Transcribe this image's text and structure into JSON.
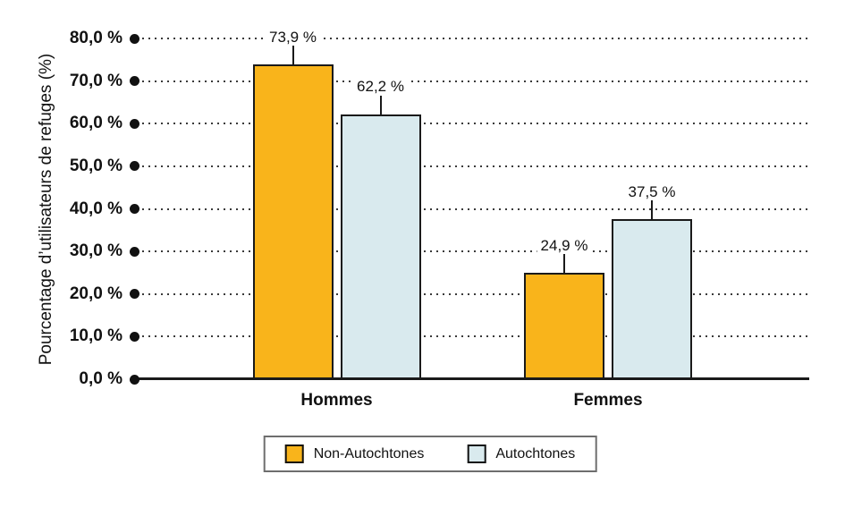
{
  "chart_data": {
    "type": "bar",
    "title": "",
    "ylabel": "Pourcentage d’utilisateurs de refuges (%)",
    "xlabel": "",
    "ylim": [
      0,
      80
    ],
    "ytick_step": 10,
    "grid": "dotted-horizontal",
    "legend_position": "bottom",
    "yticks": [
      {
        "value": 0,
        "label": "0,0 %"
      },
      {
        "value": 10,
        "label": "10,0 %"
      },
      {
        "value": 20,
        "label": "20,0 %"
      },
      {
        "value": 30,
        "label": "30,0 %"
      },
      {
        "value": 40,
        "label": "40,0 %"
      },
      {
        "value": 50,
        "label": "50,0 %"
      },
      {
        "value": 60,
        "label": "60,0 %"
      },
      {
        "value": 70,
        "label": "70,0 %"
      },
      {
        "value": 80,
        "label": "80,0 %"
      }
    ],
    "categories": [
      "Hommes",
      "Femmes"
    ],
    "series": [
      {
        "name": "Non-Autochtones",
        "color": "#F9B41B",
        "values": [
          73.9,
          24.9
        ],
        "labels": [
          "73,9 %",
          "24,9 %"
        ]
      },
      {
        "name": "Autochtones",
        "color": "#D9EAEE",
        "values": [
          62.2,
          37.5
        ],
        "labels": [
          "62,2 %",
          "37,5 %"
        ]
      }
    ],
    "colors": {
      "bar_outline": "#1A1A1A",
      "axis": "#1A1A1A",
      "grid_dots": "#3A3A3A",
      "legend_border": "#6E6E6E",
      "background": "#FFFFFF"
    }
  }
}
